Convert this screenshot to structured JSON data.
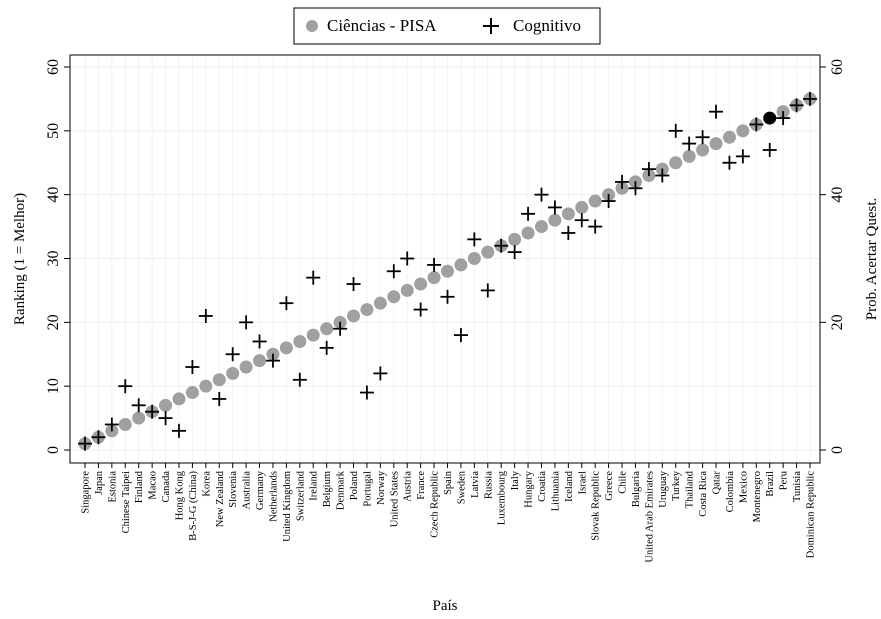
{
  "chart_data": {
    "type": "scatter",
    "xlabel": "País",
    "ylabel_left": "Ranking (1 = Melhor)",
    "ylabel_right": "Prob. Acertar Quest.",
    "ylim": [
      0,
      60
    ],
    "yticks_left": [
      0,
      10,
      20,
      30,
      40,
      50,
      60
    ],
    "yticks_right": [
      0,
      20,
      40,
      60
    ],
    "grid": true,
    "legend_position": "top-center",
    "countries": [
      "Singapore",
      "Japan",
      "Estonia",
      "Chinese Taipei",
      "Finland",
      "Macao",
      "Canada",
      "Hong Kong",
      "B-S-J-G (China)",
      "Korea",
      "New Zealand",
      "Slovenia",
      "Australia",
      "Germany",
      "Netherlands",
      "United Kingdom",
      "Switzerland",
      "Ireland",
      "Belgium",
      "Denmark",
      "Poland",
      "Portugal",
      "Norway",
      "United States",
      "Austria",
      "France",
      "Czech Republic",
      "Spain",
      "Sweden",
      "Latvia",
      "Russia",
      "Luxembourg",
      "Italy",
      "Hungary",
      "Croatia",
      "Lithuania",
      "Iceland",
      "Israel",
      "Slovak Republic",
      "Greece",
      "Chile",
      "Bulgaria",
      "United Arab Emirates",
      "Uruguay",
      "Turkey",
      "Thailand",
      "Costa Rica",
      "Qatar",
      "Colombia",
      "Mexico",
      "Montenegro",
      "Brazil",
      "Peru",
      "Tunisia",
      "Dominican Republic"
    ],
    "highlight": "Brazil",
    "series": [
      {
        "name": "Ciências - PISA",
        "marker": "circle",
        "color": "#a0a0a0",
        "highlight_color": "#000000",
        "values": [
          1,
          2,
          3,
          4,
          5,
          6,
          7,
          8,
          9,
          10,
          11,
          12,
          13,
          14,
          15,
          16,
          17,
          18,
          19,
          20,
          21,
          22,
          23,
          24,
          25,
          26,
          27,
          28,
          29,
          30,
          31,
          32,
          33,
          34,
          35,
          36,
          37,
          38,
          39,
          40,
          41,
          42,
          43,
          44,
          45,
          46,
          47,
          48,
          49,
          50,
          51,
          52,
          53,
          54,
          55
        ]
      },
      {
        "name": "Cognitivo",
        "marker": "plus",
        "color": "#000000",
        "values": [
          1,
          2,
          4,
          10,
          7,
          6,
          5,
          3,
          13,
          21,
          8,
          15,
          20,
          17,
          14,
          23,
          11,
          27,
          16,
          19,
          26,
          9,
          12,
          28,
          30,
          22,
          29,
          24,
          18,
          33,
          25,
          32,
          31,
          37,
          40,
          38,
          34,
          36,
          35,
          39,
          42,
          41,
          44,
          43,
          50,
          48,
          49,
          53,
          45,
          46,
          51,
          47,
          52,
          54,
          55
        ]
      }
    ]
  }
}
